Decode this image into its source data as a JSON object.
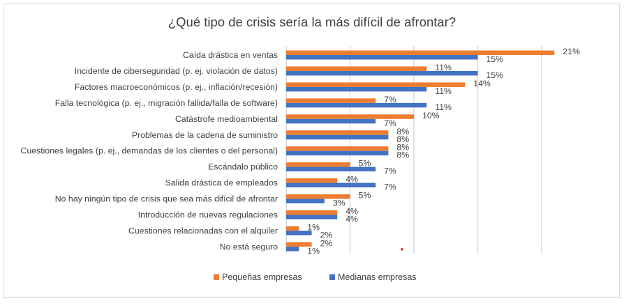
{
  "chart_data": {
    "type": "bar",
    "orientation": "horizontal",
    "title": "¿Qué tipo de crisis sería la más difícil de afrontar?",
    "xlabel": "",
    "ylabel": "",
    "xlim": [
      0,
      24
    ],
    "grid": true,
    "gridline_step": 5,
    "legend_position": "bottom",
    "categories": [
      "Caída drástica en ventas",
      "Incidente de ciberseguridad (p. ej. violación de datos)",
      "Factores macroeconómicos (p. ej., inflación/recesión)",
      "Falla tecnológica (p. ej., migración fallida/falla de software)",
      "Catástrofe medioambiental",
      "Problemas de la cadena de suministro",
      "Cuestiones legales (p. ej., demandas de los clientes o del personal)",
      "Escándalo público",
      "Salida drástica de empleados",
      "No hay ningún tipo de crisis que sea más difícil de afrontar",
      "Introducción de nuevas regulaciones",
      "Cuestiones relacionadas con el alquiler",
      "No está seguro"
    ],
    "series": [
      {
        "name": "Pequeñas empresas",
        "color": "#ED7D31",
        "values": [
          21,
          11,
          14,
          7,
          10,
          8,
          8,
          5,
          4,
          5,
          4,
          1,
          2
        ]
      },
      {
        "name": "Medianas empresas",
        "color": "#4472C4",
        "values": [
          15,
          15,
          11,
          11,
          7,
          8,
          8,
          7,
          7,
          3,
          4,
          2,
          1
        ]
      }
    ],
    "value_suffix": "%"
  }
}
